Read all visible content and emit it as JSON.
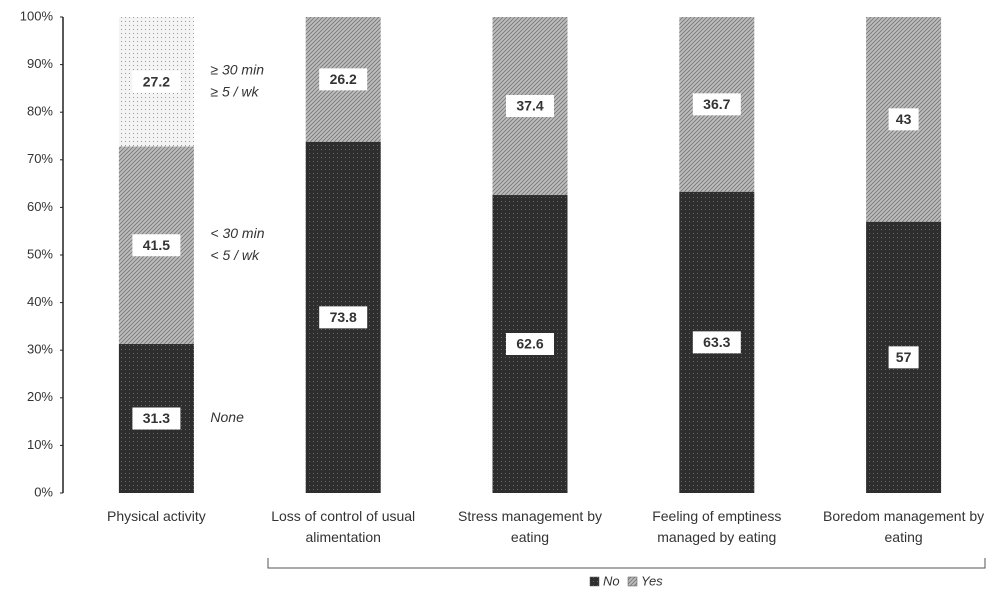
{
  "chart_data": {
    "type": "stacked_bar",
    "categories": [
      "Physical activity",
      "Loss of control of usual alimentation",
      "Stress management by eating",
      "Feeling of emptiness managed by eating",
      "Boredom management by eating"
    ],
    "series": [
      {
        "name": "No",
        "color": "#2e2e2e",
        "values": [
          null,
          73.8,
          62.6,
          63.3,
          57
        ]
      },
      {
        "name": "Yes",
        "color": "#bdbdbd",
        "values": [
          null,
          26.2,
          37.4,
          36.7,
          43
        ]
      }
    ],
    "activity_levels": [
      {
        "name_lines": [
          "None"
        ],
        "color": "#2e2e2e",
        "value": 31.3
      },
      {
        "name_lines": [
          "< 30 min",
          "< 5 / wk"
        ],
        "color": "#bdbdbd",
        "value": 41.5
      },
      {
        "name_lines": [
          "≥ 30 min",
          "≥ 5 / wk"
        ],
        "color": "#f4f4f4",
        "value": 27.2
      }
    ],
    "ylim": [
      0,
      100
    ],
    "yticks": [
      {
        "value": 0,
        "label": "0%"
      },
      {
        "value": 10,
        "label": "10%"
      },
      {
        "value": 20,
        "label": "20%"
      },
      {
        "value": 30,
        "label": "30%"
      },
      {
        "value": 40,
        "label": "40%"
      },
      {
        "value": 50,
        "label": "50%"
      },
      {
        "value": 60,
        "label": "60%"
      },
      {
        "value": 70,
        "label": "70%"
      },
      {
        "value": 80,
        "label": "80%"
      },
      {
        "value": 90,
        "label": "90%"
      },
      {
        "value": 100,
        "label": "100%"
      }
    ]
  }
}
